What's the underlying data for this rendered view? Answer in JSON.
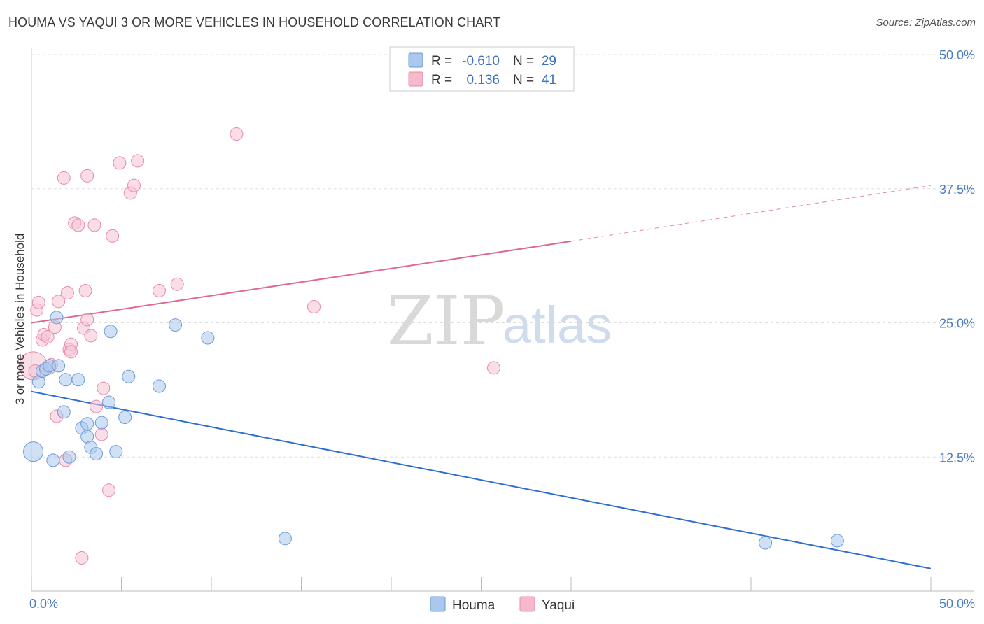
{
  "title": "HOUMA VS YAQUI 3 OR MORE VEHICLES IN HOUSEHOLD CORRELATION CHART",
  "source": "Source: ZipAtlas.com",
  "watermark": {
    "zip": "ZIP",
    "atlas": "atlas"
  },
  "legend_top": [
    {
      "series": "Houma",
      "r_label": "R =",
      "r_value": "-0.610",
      "n_label": "N =",
      "n_value": "29",
      "color": "#aac8ee"
    },
    {
      "series": "Yaqui",
      "r_label": "R =",
      "r_value": "0.136",
      "n_label": "N =",
      "n_value": "41",
      "color": "#f6b9cc"
    }
  ],
  "colors": {
    "houma_fill": "#aac8ee",
    "houma_stroke": "#6b9ad8",
    "houma_line": "#2f6fd0",
    "yaqui_fill": "#f6c3d3",
    "yaqui_stroke": "#e88aa8",
    "yaqui_line": "#e0688f",
    "grid": "#dddddd",
    "tick_label": "#4a7cc4"
  },
  "chart_data": {
    "type": "scatter",
    "title": "HOUMA VS YAQUI 3 OR MORE VEHICLES IN HOUSEHOLD CORRELATION CHART",
    "xlabel": "",
    "ylabel": "3 or more Vehicles in Household",
    "xlim": [
      0,
      50
    ],
    "ylim": [
      0,
      50
    ],
    "x_tick_labels": [
      "0.0%",
      "50.0%"
    ],
    "y_ticks": [
      12.5,
      25.0,
      37.5,
      50.0
    ],
    "y_tick_labels": [
      "12.5%",
      "25.0%",
      "37.5%",
      "50.0%"
    ],
    "grid": true,
    "legend_position": "bottom-center",
    "series": [
      {
        "name": "Houma",
        "r": -0.61,
        "n": 29,
        "trend": {
          "x0": 0,
          "y0": 18.6,
          "x1": 50,
          "y1": 2.1
        },
        "points": [
          [
            0.1,
            13.0,
            14
          ],
          [
            0.4,
            19.5,
            9
          ],
          [
            0.6,
            20.5,
            9
          ],
          [
            0.8,
            20.7,
            9
          ],
          [
            1.0,
            21.0,
            9
          ],
          [
            1.2,
            12.2,
            9
          ],
          [
            1.4,
            25.5,
            9
          ],
          [
            1.5,
            21.0,
            9
          ],
          [
            1.8,
            16.7,
            9
          ],
          [
            1.9,
            19.7,
            9
          ],
          [
            2.1,
            12.5,
            9
          ],
          [
            2.6,
            19.7,
            9
          ],
          [
            2.8,
            15.2,
            9
          ],
          [
            3.1,
            14.4,
            9
          ],
          [
            3.1,
            15.6,
            9
          ],
          [
            3.3,
            13.4,
            9
          ],
          [
            3.6,
            12.8,
            9
          ],
          [
            3.9,
            15.7,
            9
          ],
          [
            4.3,
            17.6,
            9
          ],
          [
            4.4,
            24.2,
            9
          ],
          [
            5.2,
            16.2,
            9
          ],
          [
            5.4,
            20.0,
            9
          ],
          [
            4.7,
            13.0,
            9
          ],
          [
            7.1,
            19.1,
            9
          ],
          [
            8.0,
            24.8,
            9
          ],
          [
            9.8,
            23.6,
            9
          ],
          [
            14.1,
            4.9,
            9
          ],
          [
            40.8,
            4.5,
            9
          ],
          [
            44.8,
            4.7,
            9
          ]
        ]
      },
      {
        "name": "Yaqui",
        "r": 0.136,
        "n": 41,
        "trend": {
          "x0": 0,
          "y0": 25.0,
          "x1": 30,
          "y1": 32.6,
          "dash_x1": 50,
          "dash_y1": 37.8
        },
        "points": [
          [
            0.1,
            21.0,
            20
          ],
          [
            0.3,
            26.2,
            9
          ],
          [
            0.4,
            26.9,
            9
          ],
          [
            0.6,
            23.4,
            9
          ],
          [
            0.7,
            23.9,
            9
          ],
          [
            0.9,
            23.7,
            9
          ],
          [
            1.0,
            20.8,
            9
          ],
          [
            1.1,
            21.1,
            9
          ],
          [
            1.3,
            24.6,
            9
          ],
          [
            1.4,
            16.3,
            9
          ],
          [
            1.5,
            27.0,
            9
          ],
          [
            1.8,
            38.5,
            9
          ],
          [
            1.9,
            12.2,
            9
          ],
          [
            2.0,
            27.8,
            9
          ],
          [
            2.1,
            22.5,
            9
          ],
          [
            2.2,
            23.0,
            9
          ],
          [
            2.4,
            34.3,
            9
          ],
          [
            2.6,
            34.1,
            9
          ],
          [
            2.8,
            3.1,
            9
          ],
          [
            2.9,
            24.5,
            9
          ],
          [
            3.0,
            28.0,
            9
          ],
          [
            3.1,
            38.7,
            9
          ],
          [
            3.1,
            25.3,
            9
          ],
          [
            3.3,
            23.8,
            9
          ],
          [
            3.5,
            34.1,
            9
          ],
          [
            3.6,
            17.2,
            9
          ],
          [
            3.9,
            14.6,
            9
          ],
          [
            4.0,
            18.9,
            9
          ],
          [
            4.3,
            9.4,
            9
          ],
          [
            4.5,
            33.1,
            9
          ],
          [
            4.9,
            39.9,
            9
          ],
          [
            5.5,
            37.1,
            9
          ],
          [
            5.7,
            37.8,
            9
          ],
          [
            5.9,
            40.1,
            9
          ],
          [
            7.1,
            28.0,
            9
          ],
          [
            8.1,
            28.6,
            9
          ],
          [
            11.4,
            42.6,
            9
          ],
          [
            15.7,
            26.5,
            9
          ],
          [
            25.7,
            20.8,
            9
          ],
          [
            0.2,
            20.5,
            9
          ],
          [
            2.2,
            22.3,
            9
          ]
        ]
      }
    ]
  }
}
